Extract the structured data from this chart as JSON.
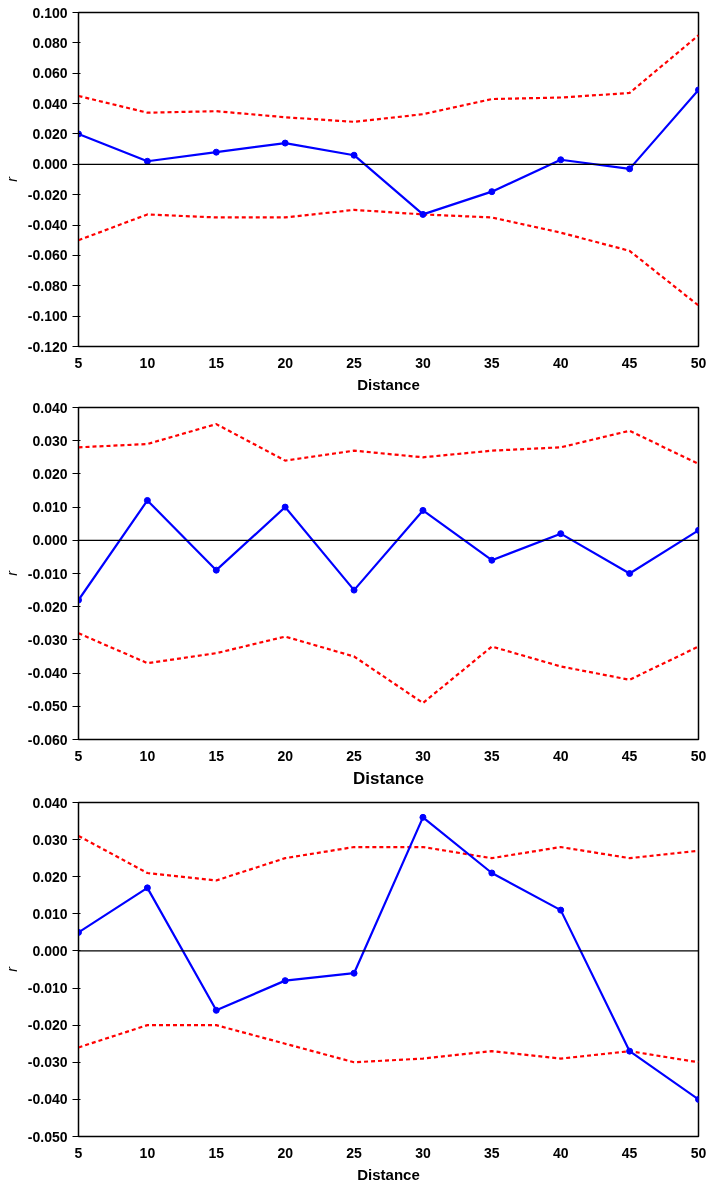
{
  "chart_data": [
    {
      "type": "line",
      "xlabel": "Distance",
      "ylabel": "r",
      "x": [
        5,
        10,
        15,
        20,
        25,
        30,
        35,
        40,
        45,
        50
      ],
      "xlim": [
        5,
        50
      ],
      "xticks": [
        5,
        10,
        15,
        20,
        25,
        30,
        35,
        40,
        45,
        50
      ],
      "ylim": [
        -0.12,
        0.1
      ],
      "yticks": [
        {
          "value": -0.12,
          "label": "-0.120"
        },
        {
          "value": -0.1,
          "label": "-0.100"
        },
        {
          "value": -0.08,
          "label": "-0.080"
        },
        {
          "value": -0.06,
          "label": "-0.060"
        },
        {
          "value": -0.04,
          "label": "-0.040"
        },
        {
          "value": -0.02,
          "label": "-0.020"
        },
        {
          "value": 0,
          "label": "0.000"
        },
        {
          "value": 0.02,
          "label": "0.020"
        },
        {
          "value": 0.04,
          "label": "0.040"
        },
        {
          "value": 0.06,
          "label": "0.060"
        },
        {
          "value": 0.08,
          "label": "0.080"
        },
        {
          "value": 0.1,
          "label": "0.100"
        }
      ],
      "grid": false,
      "ref_lines": [
        {
          "axis": "y",
          "value": 0,
          "color": "#000000"
        }
      ],
      "series": [
        {
          "color": "#ff0000",
          "line_style": "dashed",
          "marker": "none",
          "values": [
            0.045,
            0.034,
            0.035,
            0.031,
            0.028,
            0.033,
            0.043,
            0.044,
            0.047,
            0.085
          ]
        },
        {
          "color": "#ff0000",
          "line_style": "dashed",
          "marker": "none",
          "values": [
            -0.05,
            -0.033,
            -0.035,
            -0.035,
            -0.03,
            -0.033,
            -0.035,
            -0.045,
            -0.057,
            -0.093
          ]
        },
        {
          "color": "#0000ff",
          "line_style": "solid",
          "marker": "circle",
          "values": [
            0.02,
            0.002,
            0.008,
            0.014,
            0.006,
            -0.033,
            -0.018,
            0.003,
            -0.003,
            0.049
          ]
        }
      ]
    },
    {
      "type": "line",
      "xlabel": "Distance",
      "ylabel": "r",
      "x": [
        5,
        10,
        15,
        20,
        25,
        30,
        35,
        40,
        45,
        50
      ],
      "xlim": [
        5,
        50
      ],
      "xticks": [
        5,
        10,
        15,
        20,
        25,
        30,
        35,
        40,
        45,
        50
      ],
      "ylim": [
        -0.06,
        0.04
      ],
      "yticks": [
        {
          "value": -0.06,
          "label": "-0.060"
        },
        {
          "value": -0.05,
          "label": "-0.050"
        },
        {
          "value": -0.04,
          "label": "-0.040"
        },
        {
          "value": -0.03,
          "label": "-0.030"
        },
        {
          "value": -0.02,
          "label": "-0.020"
        },
        {
          "value": -0.01,
          "label": "-0.010"
        },
        {
          "value": 0,
          "label": "0.000"
        },
        {
          "value": 0.01,
          "label": "0.010"
        },
        {
          "value": 0.02,
          "label": "0.020"
        },
        {
          "value": 0.03,
          "label": "0.030"
        },
        {
          "value": 0.04,
          "label": "0.040"
        }
      ],
      "grid": false,
      "ref_lines": [
        {
          "axis": "y",
          "value": 0,
          "color": "#000000"
        }
      ],
      "series": [
        {
          "color": "#ff0000",
          "line_style": "dashed",
          "marker": "none",
          "values": [
            0.028,
            0.029,
            0.035,
            0.024,
            0.027,
            0.025,
            0.027,
            0.028,
            0.033,
            0.023
          ]
        },
        {
          "color": "#ff0000",
          "line_style": "dashed",
          "marker": "none",
          "values": [
            -0.028,
            -0.037,
            -0.034,
            -0.029,
            -0.035,
            -0.049,
            -0.032,
            -0.038,
            -0.042,
            -0.032
          ]
        },
        {
          "color": "#0000ff",
          "line_style": "solid",
          "marker": "circle",
          "values": [
            -0.018,
            0.012,
            -0.009,
            0.01,
            -0.015,
            0.009,
            -0.006,
            0.002,
            -0.01,
            0.003
          ]
        }
      ]
    },
    {
      "type": "line",
      "xlabel": "Distance",
      "ylabel": "r",
      "x": [
        5,
        10,
        15,
        20,
        25,
        30,
        35,
        40,
        45,
        50
      ],
      "xlim": [
        5,
        50
      ],
      "xticks": [
        5,
        10,
        15,
        20,
        25,
        30,
        35,
        40,
        45,
        50
      ],
      "ylim": [
        -0.05,
        0.04
      ],
      "yticks": [
        {
          "value": -0.05,
          "label": "-0.050"
        },
        {
          "value": -0.04,
          "label": "-0.040"
        },
        {
          "value": -0.03,
          "label": "-0.030"
        },
        {
          "value": -0.02,
          "label": "-0.020"
        },
        {
          "value": -0.01,
          "label": "-0.010"
        },
        {
          "value": 0,
          "label": "0.000"
        },
        {
          "value": 0.01,
          "label": "0.010"
        },
        {
          "value": 0.02,
          "label": "0.020"
        },
        {
          "value": 0.03,
          "label": "0.030"
        },
        {
          "value": 0.04,
          "label": "0.040"
        }
      ],
      "grid": false,
      "ref_lines": [
        {
          "axis": "y",
          "value": 0,
          "color": "#000000"
        }
      ],
      "series": [
        {
          "color": "#ff0000",
          "line_style": "dashed",
          "marker": "none",
          "values": [
            0.031,
            0.021,
            0.019,
            0.025,
            0.028,
            0.028,
            0.025,
            0.028,
            0.025,
            0.027
          ]
        },
        {
          "color": "#ff0000",
          "line_style": "dashed",
          "marker": "none",
          "values": [
            -0.026,
            -0.02,
            -0.02,
            -0.025,
            -0.03,
            -0.029,
            -0.027,
            -0.029,
            -0.027,
            -0.03
          ]
        },
        {
          "color": "#0000ff",
          "line_style": "solid",
          "marker": "circle",
          "values": [
            0.005,
            0.017,
            -0.016,
            -0.008,
            -0.006,
            0.036,
            0.021,
            0.011,
            -0.027,
            -0.04
          ]
        }
      ]
    }
  ]
}
